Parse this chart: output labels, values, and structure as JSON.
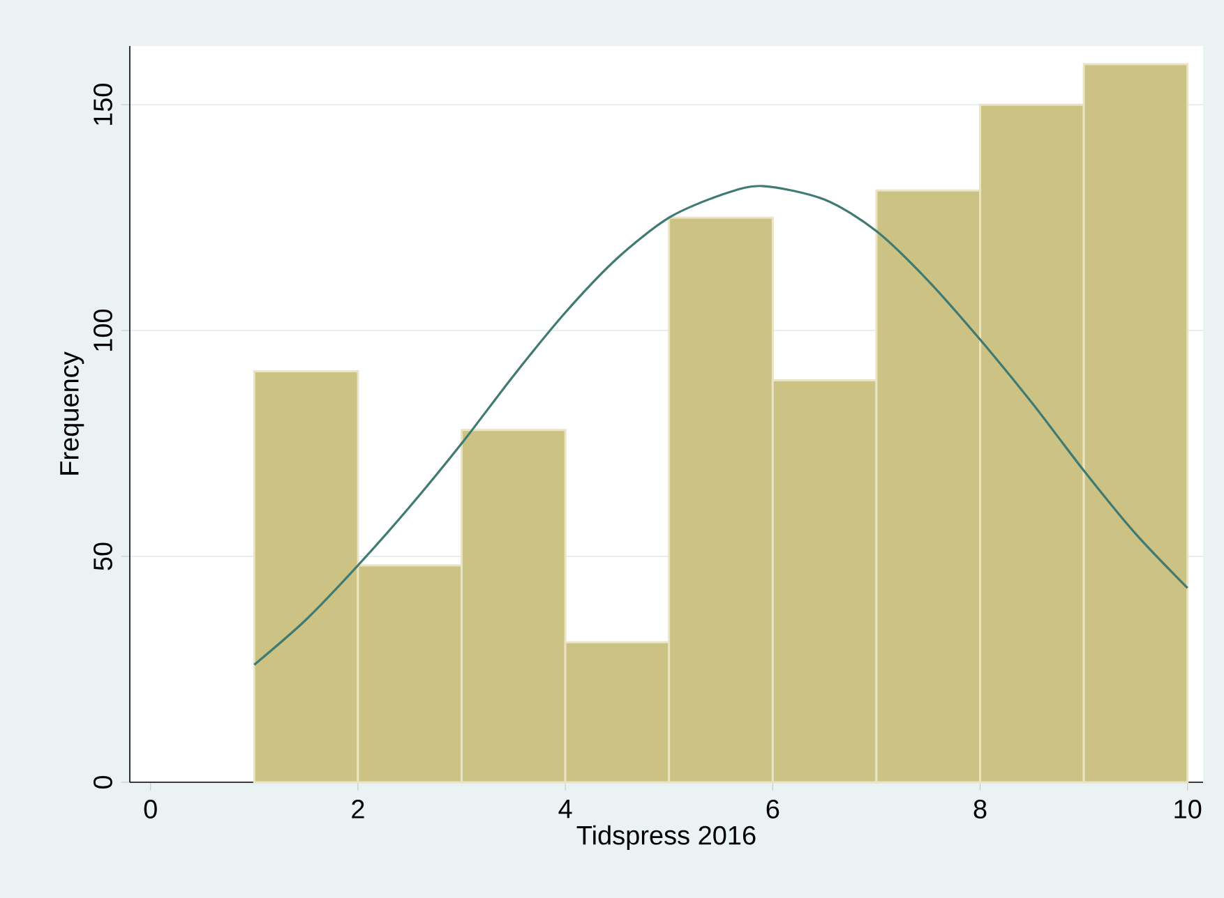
{
  "chart_data": {
    "type": "histogram",
    "xlabel": "Tidspress 2016",
    "ylabel": "Frequency",
    "bins": [
      1,
      2,
      3,
      4,
      5,
      6,
      7,
      8,
      9,
      10
    ],
    "values": [
      91,
      48,
      78,
      31,
      125,
      89,
      131,
      150,
      159
    ],
    "color": "#ccc283",
    "series": [
      {
        "type": "line",
        "color": "#3f7a73",
        "x": [
          1,
          1.5,
          2,
          2.5,
          3,
          3.5,
          4,
          4.5,
          5,
          5.5,
          5.9,
          6.5,
          7,
          7.5,
          8,
          8.5,
          9,
          9.5,
          10
        ],
        "values": [
          26,
          36,
          48,
          61,
          75,
          90,
          104,
          116,
          125,
          130,
          132,
          129,
          122,
          111,
          98,
          84,
          69,
          55,
          43
        ]
      }
    ],
    "xlim": [
      -0.2,
      10.15
    ],
    "xticks": [
      0,
      2,
      4,
      6,
      8,
      10
    ],
    "ylim": [
      0,
      163
    ],
    "yticks": [
      0,
      50,
      100,
      150
    ],
    "grid": "y"
  }
}
